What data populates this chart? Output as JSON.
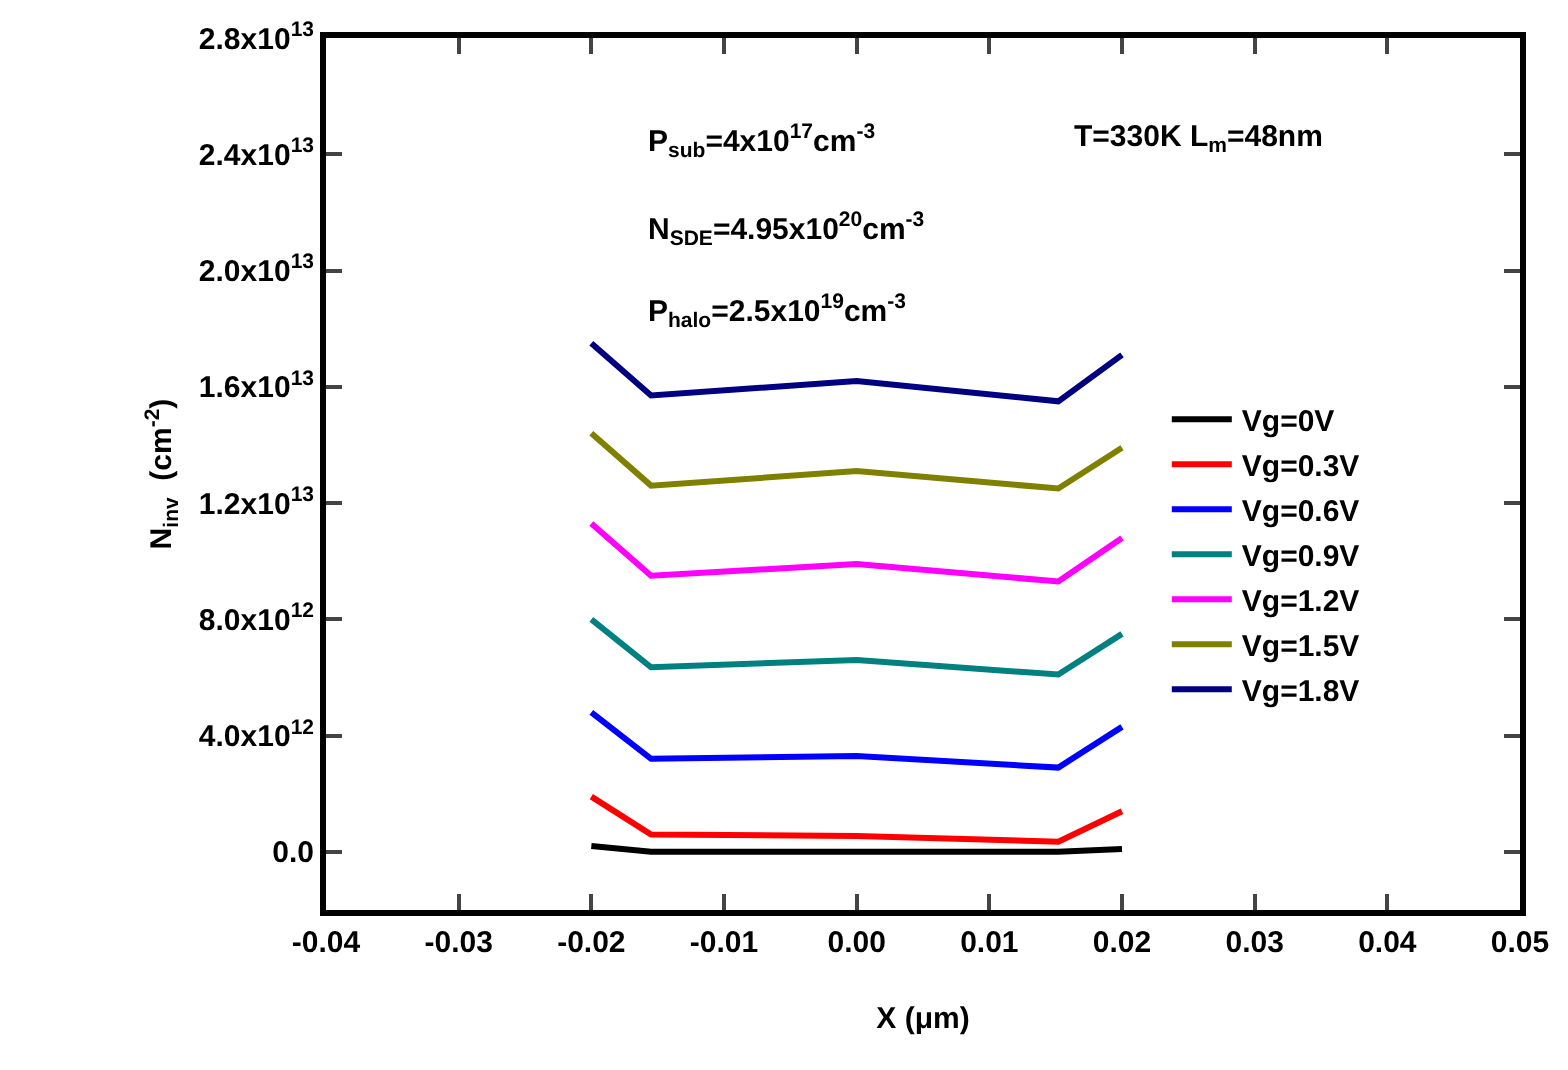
{
  "chart_data": {
    "type": "line",
    "xlabel": "X (μm)",
    "ylabel": "N$_{inv}$  (cm$^{-2}$)",
    "annotations": [
      "P$_{sub}$=4x10$^{17}$cm$^{-3}$",
      "T=330K L$_{m}$=48nm",
      "N$_{SDE}$=4.95x10$^{20}$cm$^{-3}$",
      "P$_{halo}$=2.5x10$^{19}$cm$^{-3}$"
    ],
    "x": [
      -0.02,
      -0.0155,
      0,
      0.0152,
      0.02
    ],
    "series": [
      {
        "name": "Vg=0V",
        "color": "#000000",
        "values": [
          200000000000.0,
          0,
          0,
          0,
          100000000000.0
        ]
      },
      {
        "name": "Vg=0.3V",
        "color": "#ff0000",
        "values": [
          1900000000000.0,
          600000000000.0,
          550000000000.0,
          350000000000.0,
          1400000000000.0
        ]
      },
      {
        "name": "Vg=0.6V",
        "color": "#0000ff",
        "values": [
          4800000000000.0,
          3200000000000.0,
          3300000000000.0,
          2900000000000.0,
          4300000000000.0
        ]
      },
      {
        "name": "Vg=0.9V",
        "color": "#008080",
        "values": [
          8000000000000.0,
          6350000000000.0,
          6600000000000.0,
          6100000000000.0,
          7500000000000.0
        ]
      },
      {
        "name": "Vg=1.2V",
        "color": "#ff00ff",
        "values": [
          11300000000000.0,
          9500000000000.0,
          9900000000000.0,
          9300000000000.0,
          10800000000000.0
        ]
      },
      {
        "name": "Vg=1.5V",
        "color": "#808000",
        "values": [
          14400000000000.0,
          12600000000000.0,
          13100000000000.0,
          12500000000000.0,
          13900000000000.0
        ]
      },
      {
        "name": "Vg=1.8V",
        "color": "#000080",
        "values": [
          17500000000000.0,
          15700000000000.0,
          16200000000000.0,
          15500000000000.0,
          17100000000000.0
        ]
      }
    ],
    "xlim": [
      -0.04,
      0.05
    ],
    "xticks": [
      {
        "value": -0.04,
        "label": "-0.04"
      },
      {
        "value": -0.03,
        "label": "-0.03"
      },
      {
        "value": -0.02,
        "label": "-0.02"
      },
      {
        "value": -0.01,
        "label": "-0.01"
      },
      {
        "value": 0,
        "label": "0.00"
      },
      {
        "value": 0.01,
        "label": "0.01"
      },
      {
        "value": 0.02,
        "label": "0.02"
      },
      {
        "value": 0.03,
        "label": "0.03"
      },
      {
        "value": 0.04,
        "label": "0.04"
      },
      {
        "value": 0.05,
        "label": "0.05"
      }
    ],
    "ylim": [
      -2000000000000.0,
      28000000000000.0
    ],
    "yticks": [
      {
        "value": 0,
        "label": "0.0"
      },
      {
        "value": 4000000000000.0,
        "label": "4.0x10$^{12}$"
      },
      {
        "value": 8000000000000.0,
        "label": "8.0x10$^{12}$"
      },
      {
        "value": 12000000000000.0,
        "label": "1.2x10$^{13}$"
      },
      {
        "value": 16000000000000.0,
        "label": "1.6x10$^{13}$"
      },
      {
        "value": 20000000000000.0,
        "label": "2.0x10$^{13}$"
      },
      {
        "value": 24000000000000.0,
        "label": "2.4x10$^{13}$"
      },
      {
        "value": 28000000000000.0,
        "label": "2.8x10$^{13}$"
      }
    ],
    "legend": "right",
    "grid": false,
    "marker": "none",
    "line_style": "solid"
  }
}
